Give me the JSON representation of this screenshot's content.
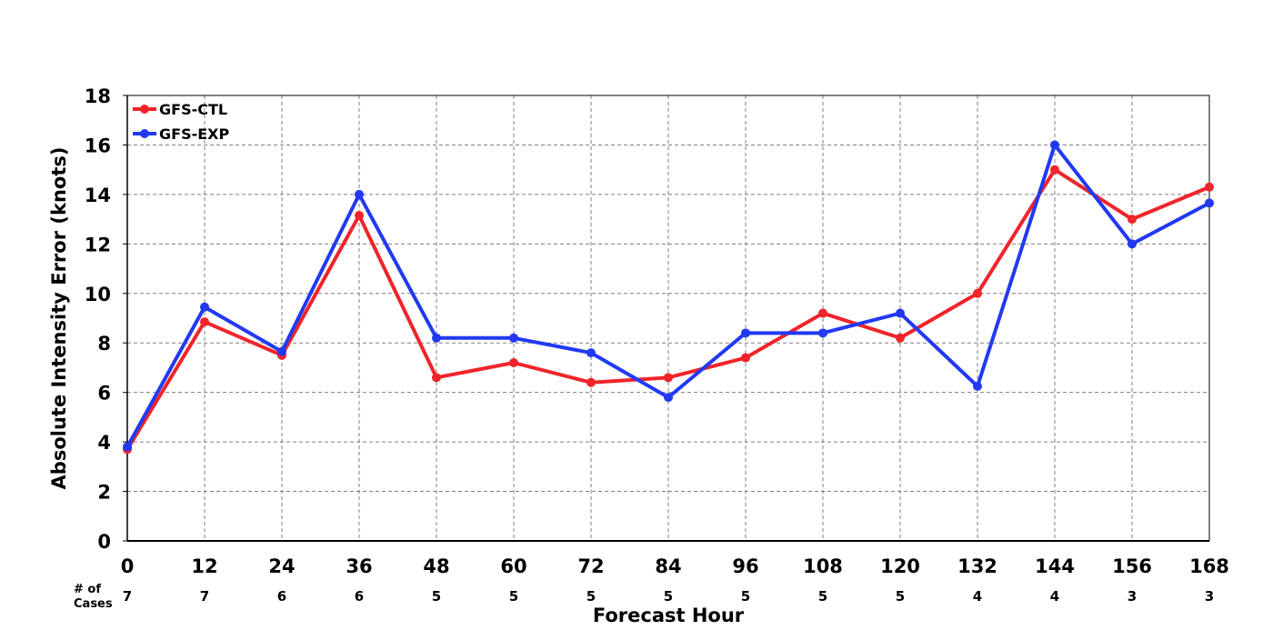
{
  "chart_data": {
    "type": "line",
    "title": "",
    "xlabel": "Forecast Hour",
    "ylabel": "Absolute Intensity Error (knots)",
    "x": [
      0,
      12,
      24,
      36,
      48,
      60,
      72,
      84,
      96,
      108,
      120,
      132,
      144,
      156,
      168
    ],
    "xlim": [
      0,
      168
    ],
    "ylim": [
      0,
      18
    ],
    "y_ticks": [
      0,
      2,
      4,
      6,
      8,
      10,
      12,
      14,
      16,
      18
    ],
    "grid": true,
    "legend_position": "top-left",
    "series": [
      {
        "name": "GFS-CTL",
        "color": "#f0242a",
        "values": [
          3.7,
          8.85,
          7.5,
          13.15,
          6.6,
          7.2,
          6.4,
          6.6,
          7.4,
          9.2,
          8.2,
          10.0,
          15.0,
          13.0,
          14.3
        ]
      },
      {
        "name": "GFS-EXP",
        "color": "#2139f2",
        "values": [
          3.8,
          9.45,
          7.65,
          14.0,
          8.2,
          8.2,
          7.6,
          5.8,
          8.4,
          8.4,
          9.2,
          6.25,
          16.0,
          12.0,
          13.65
        ]
      }
    ],
    "cases_header_line1": "# of",
    "cases_header_line2": "Cases",
    "cases": [
      7,
      7,
      6,
      6,
      5,
      5,
      5,
      5,
      5,
      5,
      5,
      4,
      4,
      3,
      3
    ]
  }
}
